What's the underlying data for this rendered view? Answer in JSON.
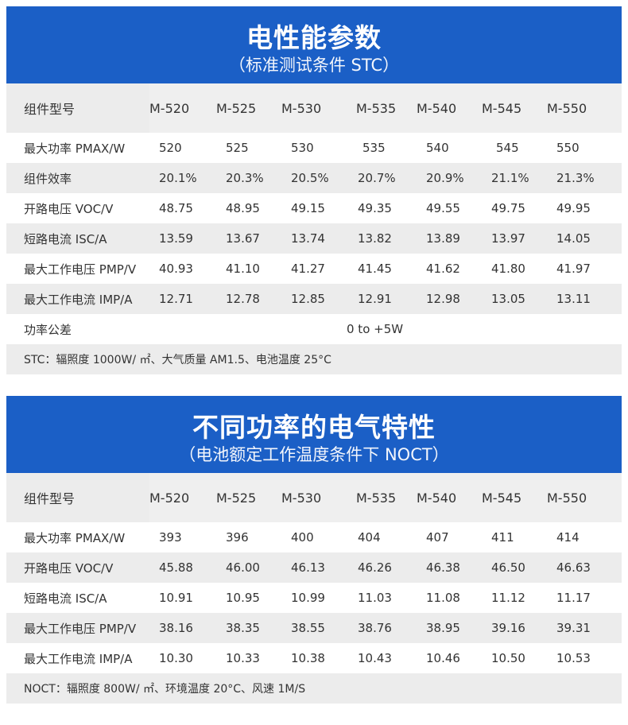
{
  "stc": {
    "title": "电性能参数",
    "subtitle": "（标准测试条件 STC）",
    "header_label": "组件型号",
    "models": [
      "M-520",
      "M-525",
      "M-530",
      "M-535",
      "M-540",
      "M-545",
      "M-550"
    ],
    "rows": [
      {
        "label": "最大功率 PMAX/W",
        "values": [
          "520",
          "525",
          "530",
          "535",
          "540",
          "545",
          "550"
        ]
      },
      {
        "label": "组件效率",
        "values": [
          "20.1%",
          "20.3%",
          "20.5%",
          "20.7%",
          "20.9%",
          "21.1%",
          "21.3%"
        ]
      },
      {
        "label": "开路电压 VOC/V",
        "values": [
          "48.75",
          "48.95",
          "49.15",
          "49.35",
          "49.55",
          "49.75",
          "49.95"
        ]
      },
      {
        "label": "短路电流 ISC/A",
        "values": [
          "13.59",
          "13.67",
          "13.74",
          "13.82",
          "13.89",
          "13.97",
          "14.05"
        ]
      },
      {
        "label": "最大工作电压 PMP/V",
        "values": [
          "40.93",
          "41.10",
          "41.27",
          "41.45",
          "41.62",
          "41.80",
          "41.97"
        ]
      },
      {
        "label": "最大工作电流 IMP/A",
        "values": [
          "12.71",
          "12.78",
          "12.85",
          "12.91",
          "12.98",
          "13.05",
          "13.11"
        ]
      }
    ],
    "tolerance_label": "功率公差",
    "tolerance_value": "0 to +5W",
    "note": "STC：辐照度 1000W/ ㎡、大气质量 AM1.5、电池温度 25°C"
  },
  "noct": {
    "title": "不同功率的电气特性",
    "subtitle": "（电池额定工作温度条件下 NOCT）",
    "header_label": "组件型号",
    "models": [
      "M-520",
      "M-525",
      "M-530",
      "M-535",
      "M-540",
      "M-545",
      "M-550"
    ],
    "rows": [
      {
        "label": "最大功率 PMAX/W",
        "values": [
          "393",
          "396",
          "400",
          "404",
          "407",
          "411",
          "414"
        ]
      },
      {
        "label": "开路电压 VOC/V",
        "values": [
          "45.88",
          "46.00",
          "46.13",
          "46.26",
          "46.38",
          "46.50",
          "46.63"
        ]
      },
      {
        "label": "短路电流 ISC/A",
        "values": [
          "10.91",
          "10.95",
          "10.99",
          "11.03",
          "11.08",
          "11.12",
          "11.17"
        ]
      },
      {
        "label": "最大工作电压 PMP/V",
        "values": [
          "38.16",
          "38.35",
          "38.55",
          "38.76",
          "38.95",
          "39.16",
          "39.31"
        ]
      },
      {
        "label": "最大工作电流 IMP/A",
        "values": [
          "10.30",
          "10.33",
          "10.38",
          "10.43",
          "10.46",
          "10.50",
          "10.53"
        ]
      }
    ],
    "note": "NOCT：辐照度 800W/ ㎡、环境温度 20°C、风速 1M/S"
  },
  "colors": {
    "banner": "#1b5fc6",
    "row_alt": "#ececec"
  }
}
